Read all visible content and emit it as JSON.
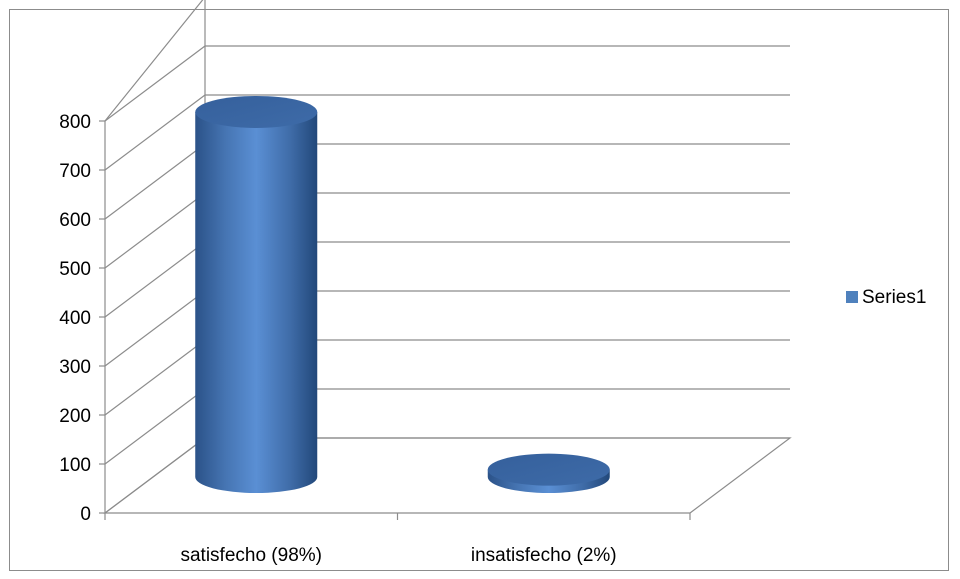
{
  "chart_data": {
    "type": "bar",
    "style": "3d-cylinder",
    "categories": [
      "satisfecho (98%)",
      "insatisfecho (2%)"
    ],
    "series": [
      {
        "name": "Series1",
        "values": [
          745,
          15
        ],
        "color": "#4f81bd"
      }
    ],
    "ylim": [
      0,
      800
    ],
    "yticks": [
      0,
      100,
      200,
      300,
      400,
      500,
      600,
      700,
      800
    ],
    "grid": true,
    "legend_position": "right"
  }
}
